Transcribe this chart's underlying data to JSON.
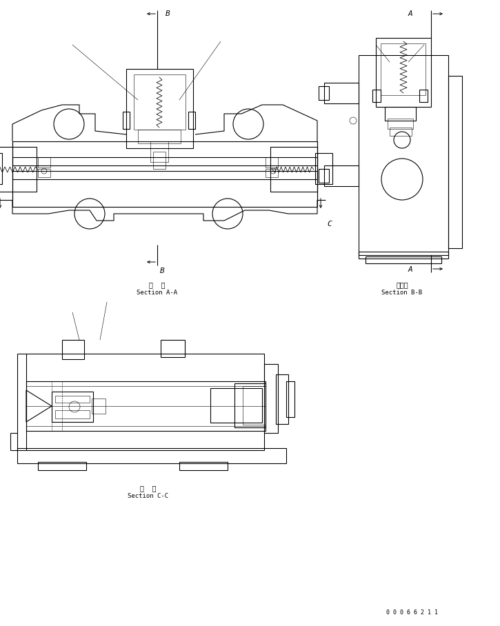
{
  "bg_color": "#ffffff",
  "line_color": "#000000",
  "lw": 0.8,
  "lw_thin": 0.4,
  "fig_width": 7.25,
  "fig_height": 9.08,
  "dpi": 100,
  "section_aa_jp": "断  面",
  "section_aa_en": "Section A-A",
  "section_bb_jp": "断　面",
  "section_bb_en": "Section B-B",
  "section_cc_jp": "断  面",
  "section_cc_en": "Section C-C",
  "drawing_number": "0 0 0 6 6 2 1 1",
  "font_size_jp": 7,
  "font_size_en": 6.5,
  "font_size_letter": 8,
  "font_size_num": 6
}
